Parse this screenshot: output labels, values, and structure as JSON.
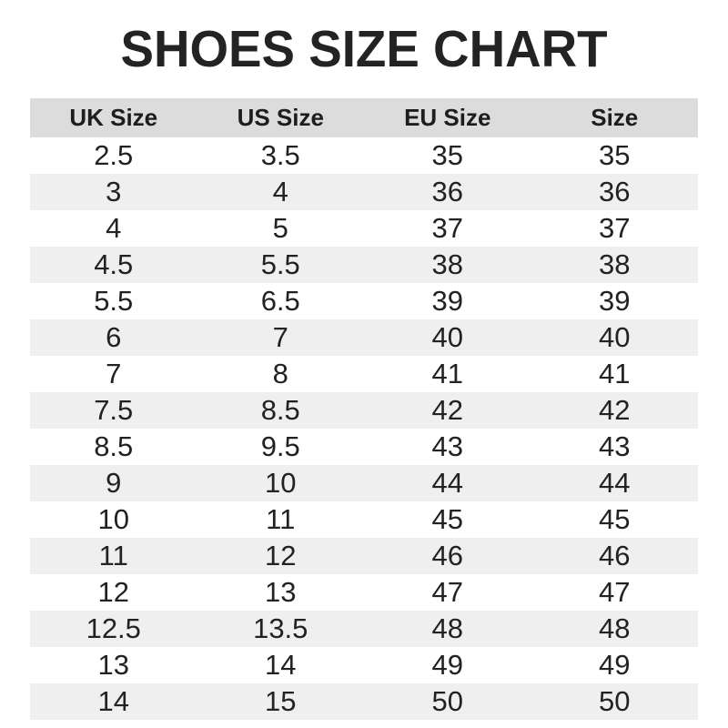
{
  "title": "SHOES SIZE CHART",
  "chart_data": {
    "type": "table",
    "title": "SHOES SIZE CHART",
    "columns": [
      "UK Size",
      "US Size",
      "EU Size",
      "Size"
    ],
    "rows": [
      [
        "2.5",
        "3.5",
        "35",
        "35"
      ],
      [
        "3",
        "4",
        "36",
        "36"
      ],
      [
        "4",
        "5",
        "37",
        "37"
      ],
      [
        "4.5",
        "5.5",
        "38",
        "38"
      ],
      [
        "5.5",
        "6.5",
        "39",
        "39"
      ],
      [
        "6",
        "7",
        "40",
        "40"
      ],
      [
        "7",
        "8",
        "41",
        "41"
      ],
      [
        "7.5",
        "8.5",
        "42",
        "42"
      ],
      [
        "8.5",
        "9.5",
        "43",
        "43"
      ],
      [
        "9",
        "10",
        "44",
        "44"
      ],
      [
        "10",
        "11",
        "45",
        "45"
      ],
      [
        "11",
        "12",
        "46",
        "46"
      ],
      [
        "12",
        "13",
        "47",
        "47"
      ],
      [
        "12.5",
        "13.5",
        "48",
        "48"
      ],
      [
        "13",
        "14",
        "49",
        "49"
      ],
      [
        "14",
        "15",
        "50",
        "50"
      ]
    ],
    "layout": {
      "striped": true,
      "first_data_row_background": "white",
      "legend": "none",
      "grid": "off"
    }
  },
  "colors": {
    "header_background": "#dcdcdc",
    "stripe_background": "#efefef",
    "title_text": "#232323",
    "cell_text": "#222222",
    "page_background": "#ffffff"
  }
}
